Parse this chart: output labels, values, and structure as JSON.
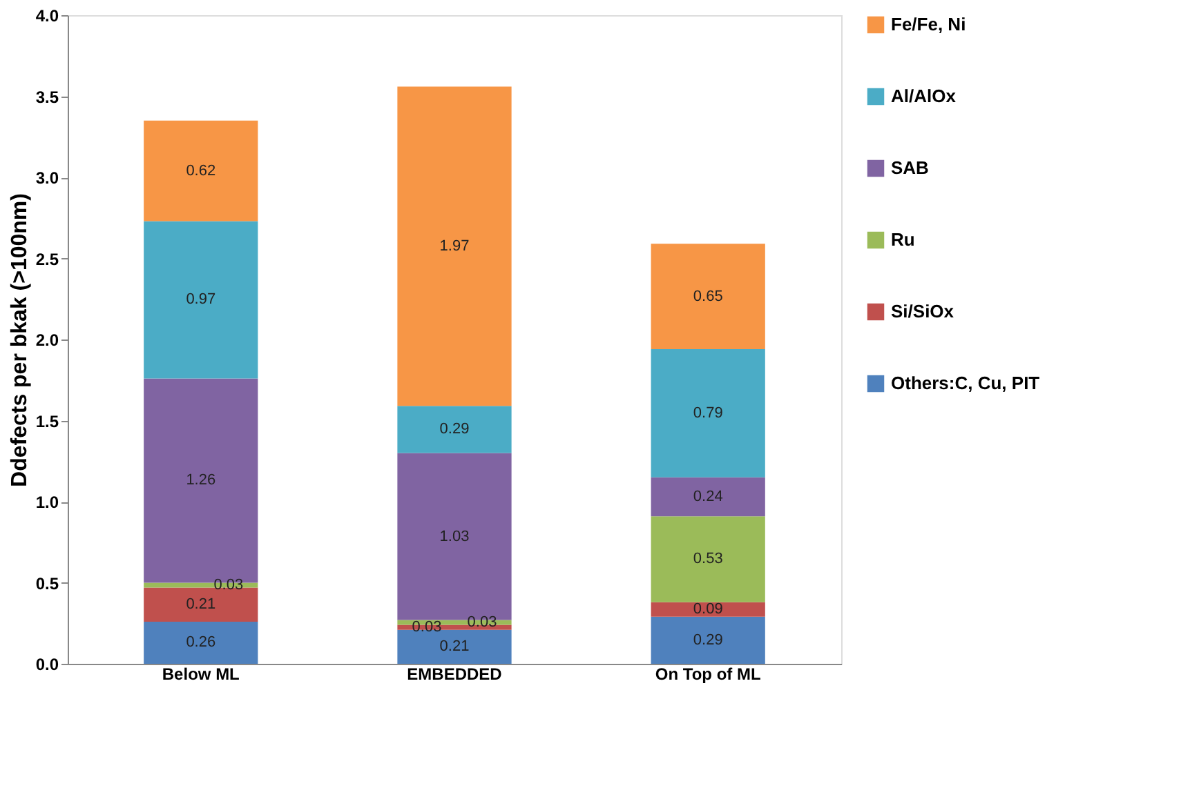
{
  "chart_data": {
    "type": "bar",
    "stacked": true,
    "ylabel": "Ddefects per bkak (>100nm)",
    "categories": [
      "Below ML",
      "EMBEDDED",
      "On Top of ML"
    ],
    "series": [
      {
        "name": "Others:C, Cu, PIT",
        "color": "#4f81bd",
        "values": [
          0.26,
          0.21,
          0.29
        ]
      },
      {
        "name": "Si/SiOx",
        "color": "#c0504d",
        "values": [
          0.21,
          0.03,
          0.09
        ]
      },
      {
        "name": "Ru",
        "color": "#9bbb59",
        "values": [
          0.03,
          0.03,
          0.53
        ]
      },
      {
        "name": "SAB",
        "color": "#8064a2",
        "values": [
          1.26,
          1.03,
          0.24
        ]
      },
      {
        "name": "Al/AlOx",
        "color": "#4bacc6",
        "values": [
          0.97,
          0.29,
          0.79
        ]
      },
      {
        "name": "Fe/Fe, Ni",
        "color": "#f79646",
        "values": [
          0.62,
          1.97,
          0.65
        ]
      }
    ],
    "ylim": [
      0,
      4
    ],
    "yticks": [
      {
        "value": 0,
        "label": "0.0"
      },
      0.5,
      {
        "value": 1,
        "label": "1.0"
      },
      1.5,
      {
        "value": 2,
        "label": "2.0"
      },
      2.5,
      {
        "value": 3,
        "label": "3.0"
      },
      3.5,
      {
        "value": 4,
        "label": "4.0"
      }
    ],
    "data_labels": true,
    "grid": false,
    "legend": "right"
  }
}
